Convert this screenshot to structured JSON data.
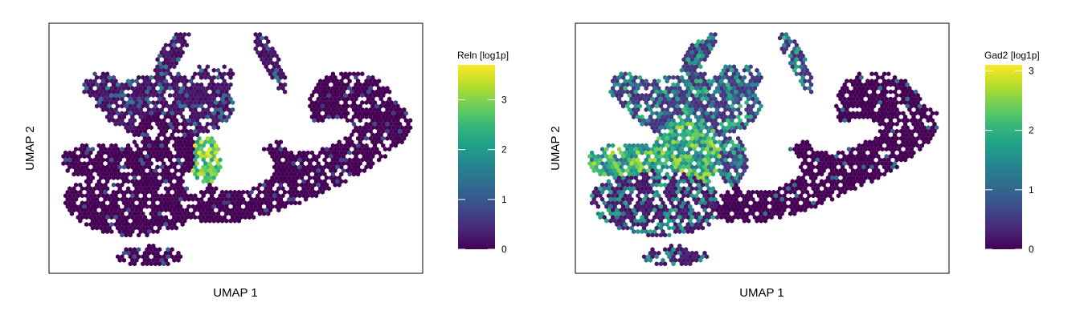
{
  "chart_data": [
    {
      "type": "hexbin-umap",
      "xlabel": "UMAP 1",
      "ylabel": "UMAP 2",
      "color_scale": "viridis",
      "legend_title": "Reln [log1p]",
      "legend_range": [
        0,
        3.7
      ],
      "legend_ticks": [
        0,
        1,
        2,
        3
      ],
      "legend_tick_labels": [
        "0",
        "1",
        "2",
        "3"
      ],
      "high_expression_regions": [
        {
          "region": "small cluster right of center-left hole",
          "approx_value": 3.6
        },
        {
          "region": "scattered cells upper-middle",
          "approx_value": 1.5
        },
        {
          "region": "most cells",
          "approx_value": 0
        }
      ]
    },
    {
      "type": "hexbin-umap",
      "xlabel": "UMAP 1",
      "ylabel": "UMAP 2",
      "color_scale": "viridis",
      "legend_title": "Gad2 [log1p]",
      "legend_range": [
        0,
        3.1
      ],
      "legend_ticks": [
        0,
        1,
        2,
        3
      ],
      "legend_tick_labels": [
        "0",
        "1",
        "2",
        "3"
      ],
      "high_expression_regions": [
        {
          "region": "left lobe and upper-left arms",
          "approx_value": 2.3
        },
        {
          "region": "lower-left blob",
          "approx_value": 2.0
        },
        {
          "region": "right elongated band",
          "approx_value": 0
        }
      ]
    }
  ],
  "colors": {
    "viridis": [
      "#440154",
      "#482878",
      "#3e4a89",
      "#31688e",
      "#26828e",
      "#1f9e89",
      "#35b779",
      "#6ece58",
      "#b5de2b",
      "#fde725"
    ],
    "frame": "#000000",
    "background": "#ffffff"
  }
}
